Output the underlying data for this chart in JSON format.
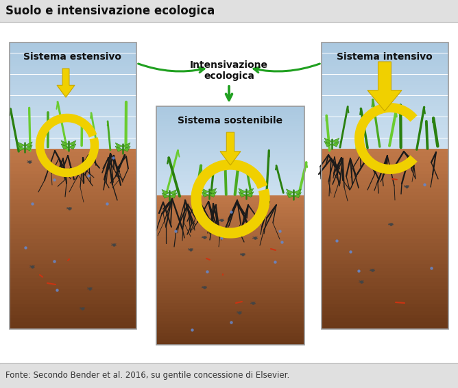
{
  "title": "Suolo e intensivazione ecologica",
  "footer": "Fonte: Secondo Bender et al. 2016, su gentile concessione di Elsevier.",
  "title_fontsize": 12,
  "footer_fontsize": 8.5,
  "bg_color": "#e0e0e0",
  "panel_border_color": "#999999",
  "box_left_label": "Sistema estensivo",
  "box_center_label": "Sistema sostenibile",
  "box_right_label": "Sistema intensivo",
  "intens_line1": "Intensivazione",
  "intens_line2": "ecologica",
  "sky_top": "#aac8e0",
  "sky_bottom": "#cce0f0",
  "soil_top": "#c07848",
  "soil_bottom": "#6a3818",
  "yellow": "#f0d000",
  "yellow_edge": "#c8a800",
  "green_arrow": "#20a020",
  "grass_dark": "#2a8010",
  "grass_mid": "#4aaa20",
  "grass_light": "#6acc30",
  "root_color": "#1a1a1a",
  "leaf_color": "#5ab828",
  "bug_color": "#444444",
  "worm_color": "#cc3311",
  "dot_color": "#6688cc"
}
